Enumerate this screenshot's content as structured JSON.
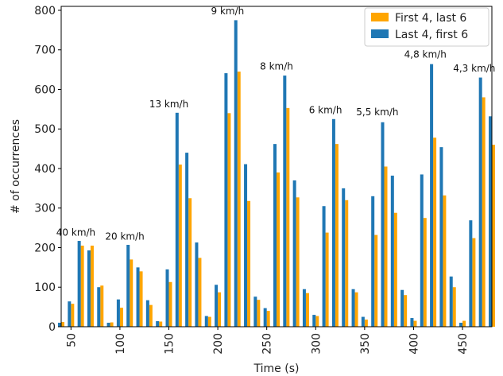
{
  "chart_data": {
    "type": "bar",
    "title": "",
    "xlabel": "Time (s)",
    "ylabel": "# of occurrences",
    "xlim": [
      40,
      480
    ],
    "ylim": [
      0,
      810
    ],
    "x_ticks": [
      50,
      100,
      150,
      200,
      250,
      300,
      350,
      400,
      450
    ],
    "y_ticks": [
      0,
      100,
      200,
      300,
      400,
      500,
      600,
      700,
      800
    ],
    "x": [
      40,
      50,
      60,
      70,
      80,
      90,
      100,
      110,
      120,
      130,
      140,
      150,
      160,
      170,
      180,
      190,
      200,
      210,
      220,
      230,
      240,
      250,
      260,
      270,
      280,
      290,
      300,
      310,
      320,
      330,
      340,
      350,
      360,
      370,
      380,
      390,
      400,
      410,
      420,
      430,
      440,
      450,
      460,
      470,
      480
    ],
    "series": [
      {
        "name": "First 4, last 6",
        "color": "#FFA500",
        "values": [
          12,
          58,
          205,
          205,
          104,
          11,
          48,
          170,
          140,
          55,
          13,
          113,
          410,
          325,
          174,
          25,
          87,
          540,
          645,
          318,
          68,
          40,
          390,
          553,
          327,
          85,
          27,
          238,
          462,
          320,
          87,
          18,
          232,
          405,
          288,
          80,
          15,
          275,
          478,
          332,
          100,
          15,
          224,
          580,
          460
        ]
      },
      {
        "name": "Last 4, first 6",
        "color": "#1F77B4",
        "values": [
          10,
          64,
          217,
          193,
          100,
          10,
          69,
          207,
          150,
          67,
          14,
          145,
          541,
          440,
          213,
          27,
          106,
          641,
          775,
          411,
          76,
          47,
          462,
          635,
          370,
          95,
          30,
          305,
          525,
          350,
          95,
          25,
          330,
          517,
          382,
          93,
          22,
          385,
          664,
          454,
          127,
          10,
          269,
          630,
          532
        ]
      }
    ],
    "annotations": [
      {
        "text": "40 km/h",
        "x": 55,
        "y": 230
      },
      {
        "text": "20 km/h",
        "x": 105,
        "y": 220
      },
      {
        "text": "13 km/h",
        "x": 150,
        "y": 555
      },
      {
        "text": "9 km/h",
        "x": 210,
        "y": 790
      },
      {
        "text": "8 km/h",
        "x": 260,
        "y": 650
      },
      {
        "text": "6 km/h",
        "x": 310,
        "y": 540
      },
      {
        "text": "5,5 km/h",
        "x": 363,
        "y": 535
      },
      {
        "text": "4,8 km/h",
        "x": 412,
        "y": 680
      },
      {
        "text": "4,3 km/h",
        "x": 462,
        "y": 645
      }
    ],
    "legend": {
      "placement": "top-right",
      "entries": [
        "First 4, last 6",
        "Last 4, first 6"
      ]
    },
    "grid": false
  }
}
